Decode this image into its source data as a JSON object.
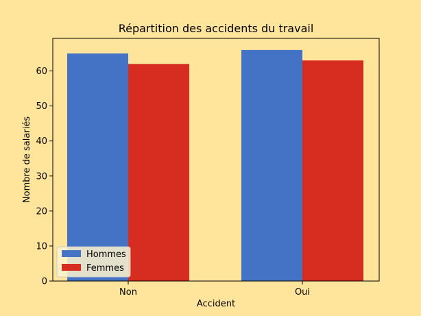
{
  "chart_data": {
    "type": "bar",
    "title": "Répartition des accidents du travail",
    "xlabel": "Accident",
    "ylabel": "Nombre de salariés",
    "categories": [
      "Non",
      "Oui"
    ],
    "series": [
      {
        "name": "Hommes",
        "values": [
          65,
          66
        ],
        "color": "#4472C4"
      },
      {
        "name": "Femmes",
        "values": [
          62,
          63
        ],
        "color": "#D62D20"
      }
    ],
    "ylim": [
      0,
      69.3
    ],
    "yticks": [
      0,
      10,
      20,
      30,
      40,
      50,
      60
    ],
    "grid": false,
    "legend_position": "lower-left",
    "background": "#FFE59B"
  }
}
